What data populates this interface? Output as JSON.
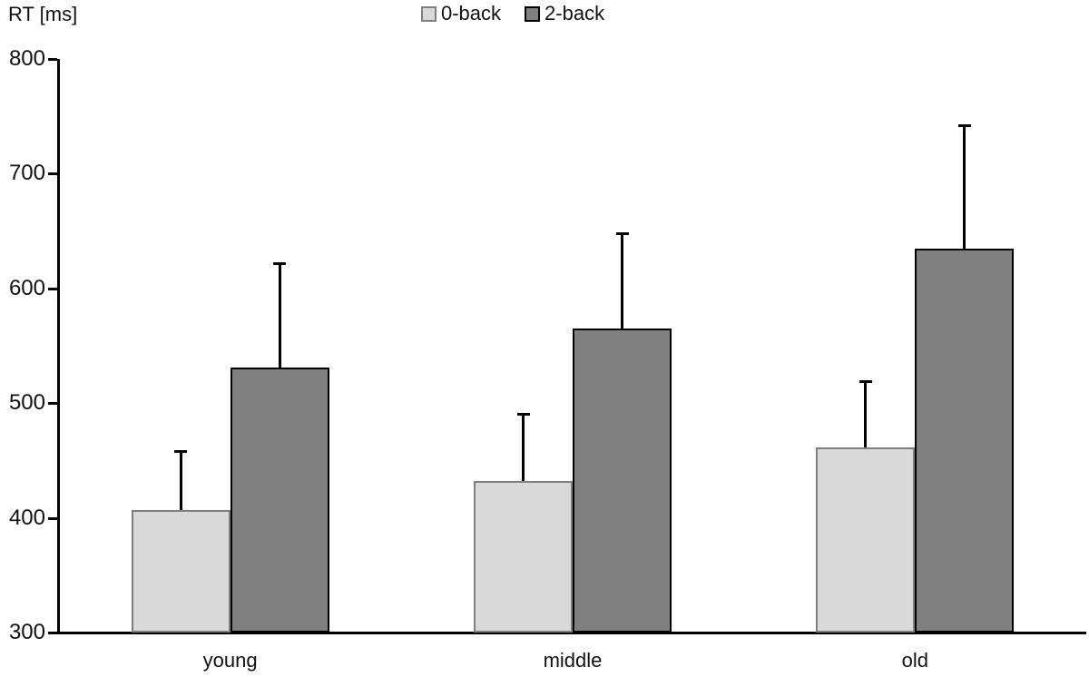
{
  "figure": {
    "y_axis_title": "RT [ms]"
  },
  "legend": {
    "items": [
      {
        "label": "0-back",
        "fill": "#d9d9d9",
        "border": "#7f7f7f"
      },
      {
        "label": "2-back",
        "fill": "#808080",
        "border": "#000000"
      }
    ]
  },
  "chart_data": {
    "type": "bar",
    "title": "",
    "xlabel": "",
    "ylabel": "RT [ms]",
    "categories": [
      "young",
      "middle",
      "old"
    ],
    "series": [
      {
        "name": "0-back",
        "values": [
          407,
          432,
          461
        ],
        "error_upper": [
          51,
          59,
          58
        ],
        "fill": "#d9d9d9",
        "border": "#7f7f7f"
      },
      {
        "name": "2-back",
        "values": [
          531,
          565,
          635
        ],
        "error_upper": [
          91,
          83,
          107
        ],
        "fill": "#808080",
        "border": "#000000"
      }
    ],
    "ylim": [
      300,
      800
    ],
    "yticks": [
      300,
      400,
      500,
      600,
      700,
      800
    ],
    "grid": false,
    "legend_position": "top-center",
    "error_bars": "upper-only"
  }
}
